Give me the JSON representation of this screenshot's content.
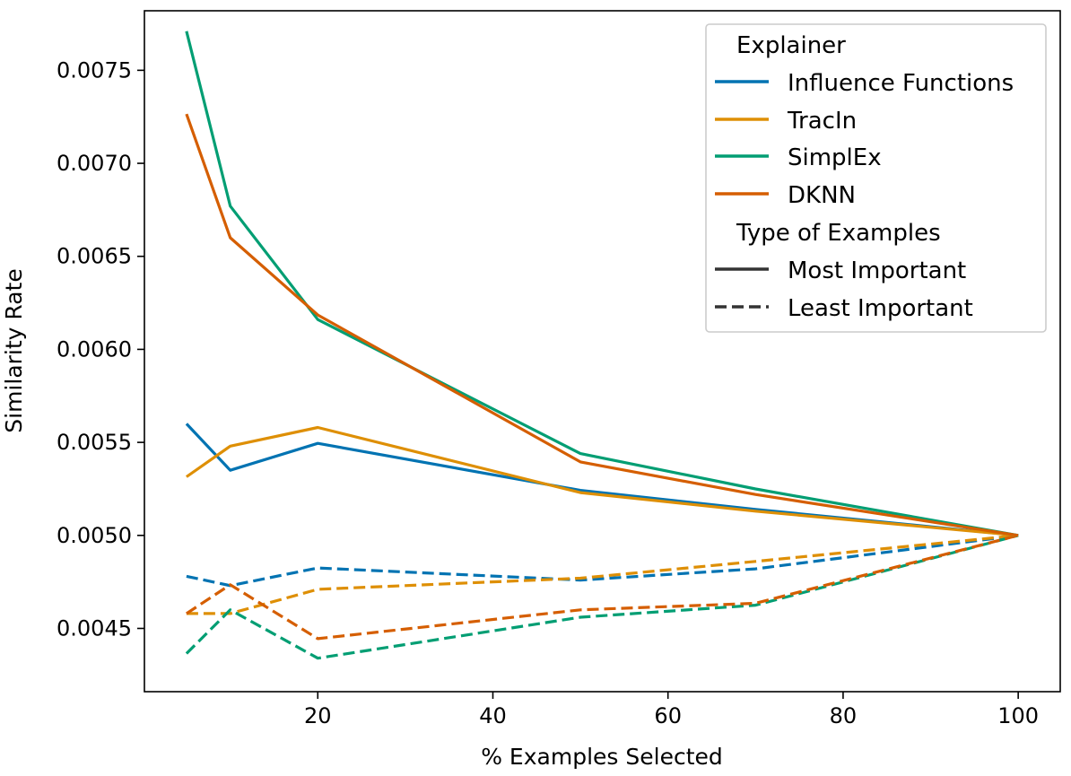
{
  "chart_data": {
    "type": "line",
    "xlabel": "% Examples Selected",
    "ylabel": "Similarity Rate",
    "xlim": [
      0.2,
      104.8
    ],
    "ylim": [
      0.00416,
      0.00782
    ],
    "xticks": [
      20,
      40,
      60,
      80,
      100
    ],
    "xtick_labels": [
      "20",
      "40",
      "60",
      "80",
      "100"
    ],
    "yticks": [
      0.0045,
      0.005,
      0.0055,
      0.006,
      0.0065,
      0.007,
      0.0075
    ],
    "ytick_labels": [
      "0.0045",
      "0.0050",
      "0.0055",
      "0.0060",
      "0.0065",
      "0.0070",
      "0.0075"
    ],
    "x": [
      5,
      10,
      20,
      50,
      70,
      100
    ],
    "grid": false,
    "legend_placement": "top-right",
    "legend": {
      "hue_title": "Explainer",
      "style_title": "Type of Examples",
      "styles": [
        {
          "name": "Most Important",
          "dash": "solid"
        },
        {
          "name": "Least Important",
          "dash": "dashed"
        }
      ]
    },
    "series": [
      {
        "name": "Influence Functions",
        "color": "#0173b2",
        "most_important": [
          0.0056,
          0.00535,
          0.005495,
          0.005242,
          0.00514,
          0.005
        ],
        "least_important": [
          0.00478,
          0.00473,
          0.004825,
          0.00476,
          0.00482,
          0.005
        ]
      },
      {
        "name": "TracIn",
        "color": "#de8f05",
        "most_important": [
          0.005315,
          0.00548,
          0.00558,
          0.00523,
          0.00513,
          0.005
        ],
        "least_important": [
          0.00458,
          0.00458,
          0.00471,
          0.00477,
          0.00486,
          0.005
        ]
      },
      {
        "name": "SimplEx",
        "color": "#029e73",
        "most_important": [
          0.00771,
          0.00677,
          0.00616,
          0.00544,
          0.00525,
          0.005
        ],
        "least_important": [
          0.004365,
          0.0046,
          0.00434,
          0.00456,
          0.004625,
          0.005
        ]
      },
      {
        "name": "DKNN",
        "color": "#d55e00",
        "most_important": [
          0.007265,
          0.0066,
          0.006185,
          0.005395,
          0.00522,
          0.005
        ],
        "least_important": [
          0.00458,
          0.004735,
          0.004445,
          0.0046,
          0.004635,
          0.005
        ]
      }
    ]
  }
}
